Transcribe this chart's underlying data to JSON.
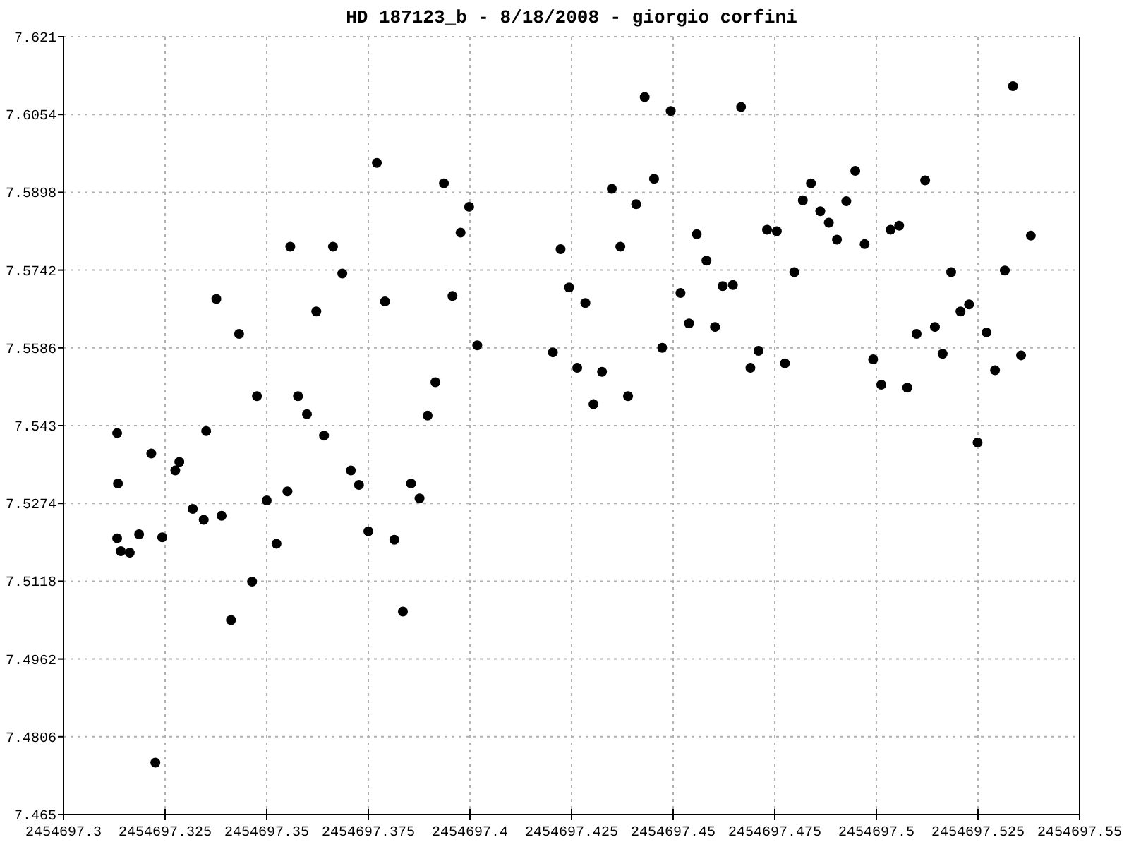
{
  "chart_data": {
    "type": "scatter",
    "title": "HD 187123_b - 8/18/2008 - giorgio corfini",
    "marker": "circle",
    "grid": true,
    "xlim": [
      2454697.3,
      2454697.55
    ],
    "xticks": [
      2454697.3,
      2454697.325,
      2454697.35,
      2454697.375,
      2454697.4,
      2454697.425,
      2454697.45,
      2454697.475,
      2454697.5,
      2454697.525,
      2454697.55
    ],
    "ylim": [
      7.465,
      7.621
    ],
    "yticks": [
      7.465,
      7.4806,
      7.4962,
      7.5118,
      7.5274,
      7.543,
      7.5586,
      7.5742,
      7.5898,
      7.6054,
      7.621
    ],
    "series": [
      {
        "color": "#000000",
        "x": [
          2454697.3132,
          2454697.3134,
          2454697.3132,
          2454697.3141,
          2454697.3163,
          2454697.3186,
          2454697.3216,
          2454697.3226,
          2454697.3243,
          2454697.3275,
          2454697.3285,
          2454697.3318,
          2454697.3345,
          2454697.3351,
          2454697.3376,
          2454697.3389,
          2454697.3412,
          2454697.3432,
          2454697.3464,
          2454697.3476,
          2454697.35,
          2454697.3524,
          2454697.3551,
          2454697.3558,
          2454697.3577,
          2454697.3599,
          2454697.3622,
          2454697.3641,
          2454697.3663,
          2454697.3686,
          2454697.3707,
          2454697.3727,
          2454697.375,
          2454697.3771,
          2454697.3791,
          2454697.3814,
          2454697.3835,
          2454697.3855,
          2454697.3876,
          2454697.3896,
          2454697.3915,
          2454697.3936,
          2454697.3957,
          2454697.3977,
          2454697.3998,
          2454697.4018,
          2454697.4204,
          2454697.4223,
          2454697.4244,
          2454697.4264,
          2454697.4284,
          2454697.4304,
          2454697.4325,
          2454697.4349,
          2454697.437,
          2454697.4389,
          2454697.4409,
          2454697.443,
          2454697.4453,
          2454697.4473,
          2454697.4494,
          2454697.4518,
          2454697.4539,
          2454697.4558,
          2454697.4582,
          2454697.4603,
          2454697.4622,
          2454697.4647,
          2454697.4667,
          2454697.469,
          2454697.471,
          2454697.4731,
          2454697.4755,
          2454697.4775,
          2454697.4798,
          2454697.4819,
          2454697.4839,
          2454697.4862,
          2454697.4883,
          2454697.4903,
          2454697.4926,
          2454697.4948,
          2454697.4971,
          2454697.4992,
          2454697.5012,
          2454697.5035,
          2454697.5056,
          2454697.5076,
          2454697.5099,
          2454697.512,
          2454697.5144,
          2454697.5163,
          2454697.5184,
          2454697.5207,
          2454697.5228,
          2454697.5249,
          2454697.5271,
          2454697.5292,
          2454697.5316,
          2454697.5336,
          2454697.5356,
          2454697.538
        ],
        "values": [
          7.5415,
          7.5314,
          7.5204,
          7.5178,
          7.5175,
          7.5212,
          7.5374,
          7.4754,
          7.5206,
          7.534,
          7.5357,
          7.5263,
          7.5241,
          7.5419,
          7.5684,
          7.5249,
          7.504,
          7.5614,
          7.5117,
          7.5489,
          7.528,
          7.5193,
          7.5298,
          7.5789,
          7.5489,
          7.5453,
          7.5659,
          7.541,
          7.5789,
          7.5735,
          7.534,
          7.5311,
          7.5218,
          7.5957,
          7.5679,
          7.5201,
          7.5057,
          7.5314,
          7.5284,
          7.545,
          7.5517,
          7.5916,
          7.569,
          7.5817,
          7.5869,
          7.5591,
          7.5577,
          7.5784,
          7.5707,
          7.5546,
          7.5676,
          7.5473,
          7.5538,
          7.5905,
          7.5789,
          7.5489,
          7.5874,
          7.6089,
          7.5925,
          7.5586,
          7.6061,
          7.5696,
          7.5635,
          7.5814,
          7.5761,
          7.5628,
          7.571,
          7.5712,
          7.6069,
          7.5546,
          7.558,
          7.5823,
          7.582,
          7.5555,
          7.5738,
          7.5882,
          7.5916,
          7.586,
          7.5837,
          7.5803,
          7.588,
          7.5941,
          7.5794,
          7.5563,
          7.5512,
          7.5823,
          7.5831,
          7.5506,
          7.5614,
          7.5922,
          7.5628,
          7.5574,
          7.5738,
          7.5659,
          7.5673,
          7.5396,
          7.5617,
          7.5541,
          7.5741,
          7.6111,
          7.5571,
          7.5811
        ]
      }
    ]
  }
}
